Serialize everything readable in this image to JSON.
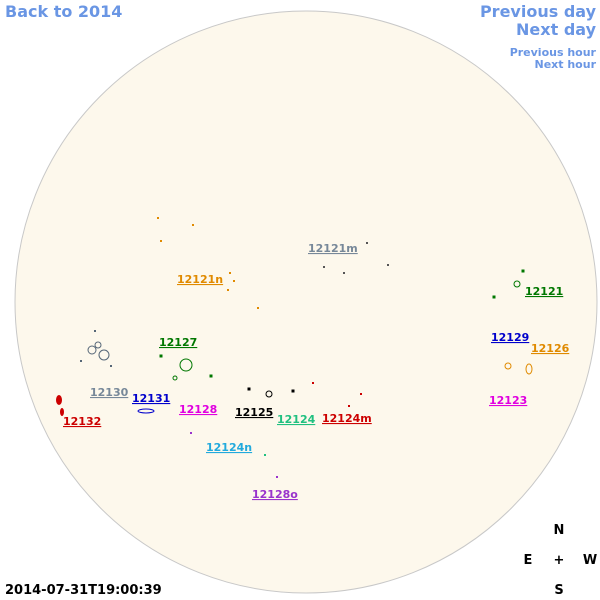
{
  "navigation": {
    "back": "Back to 2014",
    "previous_day": "Previous day",
    "next_day": "Next day",
    "previous_hour": "Previous hour",
    "next_hour": "Next hour"
  },
  "regions": [
    "12121m",
    "12121n",
    "12121",
    "12129",
    "12126",
    "12127",
    "12130",
    "12123",
    "12131",
    "12128",
    "12125",
    "12124",
    "12124m",
    "12132",
    "12124n",
    "12128o"
  ],
  "timestamp": "2014-07-31T19:00:39",
  "compass": {
    "north": "N",
    "east": "E",
    "center": "+",
    "west": "W",
    "south": "S"
  }
}
